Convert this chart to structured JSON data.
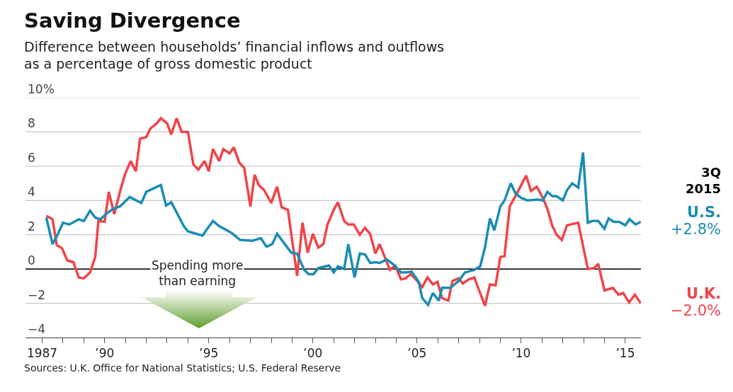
{
  "chart_data": {
    "type": "line",
    "title": "Saving Divergence",
    "subtitle": "Difference between households’ financial inflows and outflows\nas a percentage of gross domestic product",
    "xlim": [
      1986.2,
      2015.75
    ],
    "xticks": [
      {
        "value": 1987,
        "label": "1987"
      },
      {
        "value": 1988,
        "label": null
      },
      {
        "value": 1989,
        "label": null
      },
      {
        "value": 1990,
        "label": "’90"
      },
      {
        "value": 1991,
        "label": null
      },
      {
        "value": 1992,
        "label": null
      },
      {
        "value": 1993,
        "label": null
      },
      {
        "value": 1994,
        "label": null
      },
      {
        "value": 1995,
        "label": "’95"
      },
      {
        "value": 1996,
        "label": null
      },
      {
        "value": 1997,
        "label": null
      },
      {
        "value": 1998,
        "label": null
      },
      {
        "value": 1999,
        "label": null
      },
      {
        "value": 2000,
        "label": "’00"
      },
      {
        "value": 2001,
        "label": null
      },
      {
        "value": 2002,
        "label": null
      },
      {
        "value": 2003,
        "label": null
      },
      {
        "value": 2004,
        "label": null
      },
      {
        "value": 2005,
        "label": "’05"
      },
      {
        "value": 2006,
        "label": null
      },
      {
        "value": 2007,
        "label": null
      },
      {
        "value": 2008,
        "label": null
      },
      {
        "value": 2009,
        "label": null
      },
      {
        "value": 2010,
        "label": "’10"
      },
      {
        "value": 2011,
        "label": null
      },
      {
        "value": 2012,
        "label": null
      },
      {
        "value": 2013,
        "label": null
      },
      {
        "value": 2014,
        "label": null
      },
      {
        "value": 2015,
        "label": "’15"
      }
    ],
    "ylim": [
      -4,
      10
    ],
    "yticks": [
      {
        "value": -4,
        "label": "−4"
      },
      {
        "value": -2,
        "label": "−2"
      },
      0,
      2,
      4,
      6,
      8,
      {
        "value": 10,
        "label": "10%"
      }
    ],
    "grid": "y",
    "legend": false,
    "marker": "none",
    "line_style": "solid",
    "ref_lines": [
      {
        "axis": "y",
        "value": 0,
        "label": null,
        "color": "#000000"
      }
    ],
    "series": [
      {
        "name": "U.K.",
        "color": "#f0444a",
        "x": [
          1987.2,
          1987.5,
          1987.7,
          1987.96,
          1988.2,
          1988.5,
          1988.76,
          1989.0,
          1989.3,
          1989.55,
          1989.7,
          1990.0,
          1990.2,
          1990.46,
          1990.8,
          1991.0,
          1991.25,
          1991.5,
          1991.7,
          1992.0,
          1992.2,
          1992.5,
          1992.7,
          1993.0,
          1993.2,
          1993.46,
          1993.7,
          1994.0,
          1994.26,
          1994.5,
          1994.8,
          1995.0,
          1995.2,
          1995.5,
          1995.7,
          1996.0,
          1996.2,
          1996.47,
          1996.7,
          1997.0,
          1997.2,
          1997.4,
          1997.66,
          1998.0,
          1998.28,
          1998.5,
          1998.8,
          1999.24,
          1999.5,
          1999.75,
          2000.0,
          2000.26,
          2000.5,
          2000.7,
          2001.0,
          2001.2,
          2001.5,
          2001.7,
          2001.96,
          2002.25,
          2002.5,
          2002.75,
          2003.0,
          2003.2,
          2003.5,
          2003.7,
          2003.95,
          2004.23,
          2004.45,
          2004.7,
          2004.9,
          2005.25,
          2005.5,
          2005.76,
          2005.98,
          2006.2,
          2006.5,
          2006.7,
          2007.0,
          2007.2,
          2007.5,
          2007.75,
          2008.26,
          2008.5,
          2008.77,
          2009.0,
          2009.2,
          2009.45,
          2009.68,
          2010.24,
          2010.47,
          2010.75,
          2011.04,
          2011.26,
          2011.5,
          2011.7,
          2011.95,
          2012.2,
          2012.74,
          2013.2,
          2013.5,
          2013.7,
          2014.0,
          2014.4,
          2014.67,
          2014.9,
          2015.18,
          2015.46,
          2015.74
        ],
        "values": [
          3.1,
          2.9,
          1.4,
          1.2,
          0.5,
          0.4,
          -0.5,
          -0.55,
          -0.2,
          0.7,
          2.8,
          2.75,
          4.5,
          3.2,
          4.8,
          5.6,
          6.3,
          5.7,
          7.6,
          7.7,
          8.2,
          8.5,
          8.8,
          8.5,
          7.85,
          8.8,
          8.0,
          8.0,
          6.1,
          5.8,
          6.3,
          5.7,
          7.0,
          6.3,
          7.0,
          6.75,
          7.1,
          6.2,
          5.9,
          3.65,
          5.5,
          4.9,
          4.6,
          3.85,
          4.8,
          3.6,
          3.45,
          -0.4,
          2.7,
          0.95,
          2.05,
          1.25,
          1.45,
          2.6,
          3.45,
          3.9,
          2.8,
          2.6,
          2.6,
          2.0,
          2.4,
          2.05,
          0.9,
          1.45,
          0.55,
          -0.05,
          0.2,
          -0.6,
          -0.55,
          -0.3,
          -0.55,
          -1.05,
          -0.5,
          -0.9,
          -0.75,
          -1.7,
          -1.85,
          -0.7,
          -0.55,
          -0.85,
          -0.6,
          -0.5,
          -2.15,
          -0.9,
          -0.95,
          0.7,
          0.75,
          3.65,
          4.15,
          5.45,
          4.55,
          4.8,
          4.15,
          3.5,
          2.5,
          2.0,
          1.7,
          2.55,
          2.7,
          0.0,
          0.05,
          0.3,
          -1.25,
          -1.1,
          -1.5,
          -1.4,
          -1.95,
          -1.5,
          -2.0
        ]
      },
      {
        "name": "U.S.",
        "color": "#1a8db3",
        "x": [
          1987.2,
          1987.5,
          1987.7,
          1988.0,
          1988.3,
          1988.76,
          1989.0,
          1989.3,
          1989.55,
          1989.8,
          1990.06,
          1990.4,
          1990.74,
          1991.2,
          1991.76,
          1992.0,
          1992.7,
          1992.95,
          1993.2,
          1993.8,
          1994.0,
          1994.7,
          1994.9,
          1995.2,
          1995.5,
          1996.1,
          1996.5,
          1997.1,
          1997.5,
          1997.77,
          1998.05,
          1998.28,
          1998.56,
          1998.96,
          1999.24,
          1999.58,
          1999.8,
          2000.03,
          2000.26,
          2000.77,
          2001.0,
          2001.2,
          2001.5,
          2001.7,
          2002.0,
          2002.25,
          2002.5,
          2002.75,
          2003.0,
          2003.2,
          2003.55,
          2003.83,
          2004.23,
          2004.45,
          2004.74,
          2005.08,
          2005.25,
          2005.53,
          2005.76,
          2006.04,
          2006.2,
          2006.6,
          2007.0,
          2007.3,
          2007.75,
          2008.03,
          2008.26,
          2008.5,
          2008.71,
          2009.0,
          2009.2,
          2009.5,
          2009.73,
          2010.0,
          2010.3,
          2010.8,
          2011.04,
          2011.26,
          2011.5,
          2011.7,
          2012.0,
          2012.2,
          2012.45,
          2012.74,
          2012.97,
          2013.2,
          2013.42,
          2013.7,
          2014.0,
          2014.2,
          2014.44,
          2014.7,
          2015.0,
          2015.2,
          2015.5,
          2015.74
        ],
        "values": [
          3.0,
          1.45,
          1.9,
          2.7,
          2.6,
          2.9,
          2.8,
          3.4,
          3.0,
          2.9,
          3.2,
          3.5,
          3.65,
          4.2,
          3.85,
          4.5,
          4.9,
          3.7,
          3.9,
          2.5,
          2.2,
          1.95,
          2.3,
          2.8,
          2.5,
          2.1,
          1.7,
          1.65,
          1.8,
          1.3,
          1.45,
          2.05,
          1.6,
          0.95,
          0.9,
          -0.05,
          -0.3,
          -0.3,
          0.05,
          0.2,
          -0.2,
          0.15,
          0.0,
          1.45,
          -0.5,
          0.9,
          0.85,
          0.35,
          0.4,
          0.35,
          0.55,
          0.3,
          -0.2,
          -0.2,
          -0.15,
          -0.75,
          -1.7,
          -2.1,
          -1.4,
          -1.85,
          -1.1,
          -1.1,
          -0.7,
          -0.2,
          -0.05,
          0.15,
          1.25,
          2.95,
          2.25,
          3.65,
          4.0,
          5.0,
          4.4,
          4.15,
          4.0,
          4.05,
          4.0,
          4.5,
          4.25,
          4.25,
          4.0,
          4.6,
          5.0,
          4.75,
          6.8,
          2.7,
          2.8,
          2.8,
          2.35,
          2.95,
          2.75,
          2.75,
          2.55,
          2.9,
          2.6,
          2.75
        ]
      }
    ],
    "annotations": [
      "3Q\n2015",
      {
        "text": "+2.8%",
        "x": 2015.74,
        "y": 2.75
      },
      {
        "text": "−2.0%",
        "x": 2015.74,
        "y": -2.0
      },
      "Spending more\nthan earning",
      "Sources: U.K. Office for National Statistics; U.S. Federal Reserve"
    ]
  }
}
